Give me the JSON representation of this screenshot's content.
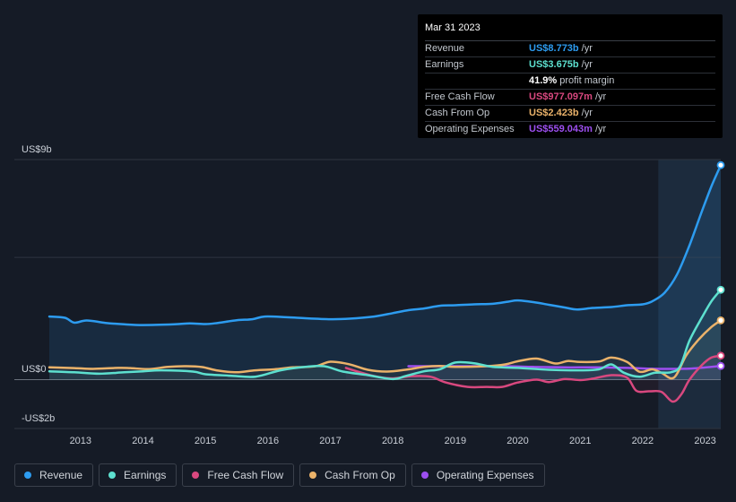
{
  "tooltip": {
    "date": "Mar 31 2023",
    "rows": [
      {
        "label": "Revenue",
        "value": "US$8.773b",
        "unit": "/yr",
        "color": "#2d9cf0"
      },
      {
        "label": "Earnings",
        "value": "US$3.675b",
        "unit": "/yr",
        "color": "#5de0cf"
      },
      {
        "label": "",
        "value": "41.9%",
        "unit": "profit margin",
        "color": "#ffffff"
      },
      {
        "label": "Free Cash Flow",
        "value": "US$977.097m",
        "unit": "/yr",
        "color": "#d9487f"
      },
      {
        "label": "Cash From Op",
        "value": "US$2.423b",
        "unit": "/yr",
        "color": "#eab26a"
      },
      {
        "label": "Operating Expenses",
        "value": "US$559.043m",
        "unit": "/yr",
        "color": "#9d4ff0"
      }
    ]
  },
  "legend": [
    {
      "label": "Revenue",
      "color": "#2d9cf0"
    },
    {
      "label": "Earnings",
      "color": "#5de0cf"
    },
    {
      "label": "Free Cash Flow",
      "color": "#d9487f"
    },
    {
      "label": "Cash From Op",
      "color": "#eab26a"
    },
    {
      "label": "Operating Expenses",
      "color": "#9d4ff0"
    }
  ],
  "chart_data": {
    "type": "line",
    "y_unit": "US$ billions",
    "ylim": [
      -2,
      9
    ],
    "y_tick_labels": [
      "US$9b",
      "US$0",
      "-US$2b"
    ],
    "y_ticks": [
      9,
      0,
      -2
    ],
    "x_tick_labels": [
      "2013",
      "2014",
      "2015",
      "2016",
      "2017",
      "2018",
      "2019",
      "2020",
      "2021",
      "2022",
      "2023"
    ],
    "x_ticks": [
      2013,
      2014,
      2015,
      2016,
      2017,
      2018,
      2019,
      2020,
      2021,
      2022,
      2023
    ],
    "xlim": [
      2012.4,
      2023.25
    ],
    "highlight_range": [
      2022.25,
      2023.25
    ],
    "series": [
      {
        "name": "Revenue",
        "color": "#2d9cf0",
        "filled": true,
        "points": [
          [
            2012.5,
            2.58
          ],
          [
            2012.75,
            2.53
          ],
          [
            2012.9,
            2.33
          ],
          [
            2013.1,
            2.42
          ],
          [
            2013.4,
            2.32
          ],
          [
            2013.7,
            2.26
          ],
          [
            2014.0,
            2.23
          ],
          [
            2014.5,
            2.26
          ],
          [
            2014.75,
            2.3
          ],
          [
            2015.0,
            2.27
          ],
          [
            2015.2,
            2.32
          ],
          [
            2015.5,
            2.43
          ],
          [
            2015.75,
            2.47
          ],
          [
            2015.95,
            2.58
          ],
          [
            2016.3,
            2.55
          ],
          [
            2016.6,
            2.51
          ],
          [
            2017.0,
            2.47
          ],
          [
            2017.3,
            2.49
          ],
          [
            2017.7,
            2.58
          ],
          [
            2018.0,
            2.72
          ],
          [
            2018.25,
            2.84
          ],
          [
            2018.5,
            2.91
          ],
          [
            2018.75,
            3.02
          ],
          [
            2019.0,
            3.04
          ],
          [
            2019.3,
            3.08
          ],
          [
            2019.6,
            3.1
          ],
          [
            2019.85,
            3.19
          ],
          [
            2020.0,
            3.24
          ],
          [
            2020.25,
            3.17
          ],
          [
            2020.5,
            3.06
          ],
          [
            2020.75,
            2.95
          ],
          [
            2020.95,
            2.87
          ],
          [
            2021.2,
            2.93
          ],
          [
            2021.5,
            2.97
          ],
          [
            2021.75,
            3.04
          ],
          [
            2022.0,
            3.08
          ],
          [
            2022.15,
            3.2
          ],
          [
            2022.35,
            3.55
          ],
          [
            2022.55,
            4.3
          ],
          [
            2022.75,
            5.5
          ],
          [
            2022.95,
            6.9
          ],
          [
            2023.1,
            7.9
          ],
          [
            2023.25,
            8.773
          ]
        ]
      },
      {
        "name": "Earnings",
        "color": "#5de0cf",
        "filled": false,
        "points": [
          [
            2012.5,
            0.34
          ],
          [
            2012.9,
            0.3
          ],
          [
            2013.3,
            0.24
          ],
          [
            2013.7,
            0.3
          ],
          [
            2014.0,
            0.34
          ],
          [
            2014.3,
            0.38
          ],
          [
            2014.8,
            0.33
          ],
          [
            2015.0,
            0.22
          ],
          [
            2015.4,
            0.16
          ],
          [
            2015.8,
            0.12
          ],
          [
            2016.2,
            0.38
          ],
          [
            2016.6,
            0.52
          ],
          [
            2016.9,
            0.55
          ],
          [
            2017.2,
            0.33
          ],
          [
            2017.6,
            0.18
          ],
          [
            2018.0,
            0.02
          ],
          [
            2018.2,
            0.14
          ],
          [
            2018.5,
            0.34
          ],
          [
            2018.75,
            0.42
          ],
          [
            2019.0,
            0.7
          ],
          [
            2019.3,
            0.67
          ],
          [
            2019.6,
            0.52
          ],
          [
            2020.0,
            0.48
          ],
          [
            2020.5,
            0.4
          ],
          [
            2021.0,
            0.38
          ],
          [
            2021.3,
            0.42
          ],
          [
            2021.5,
            0.62
          ],
          [
            2021.7,
            0.28
          ],
          [
            2021.95,
            0.12
          ],
          [
            2022.2,
            0.28
          ],
          [
            2022.45,
            0.3
          ],
          [
            2022.6,
            0.55
          ],
          [
            2022.75,
            1.6
          ],
          [
            2022.95,
            2.55
          ],
          [
            2023.1,
            3.2
          ],
          [
            2023.25,
            3.675
          ]
        ]
      },
      {
        "name": "Free Cash Flow",
        "color": "#d9487f",
        "filled": false,
        "points": [
          [
            2017.25,
            0.48
          ],
          [
            2017.5,
            0.28
          ],
          [
            2017.75,
            0.12
          ],
          [
            2018.0,
            0.05
          ],
          [
            2018.3,
            0.14
          ],
          [
            2018.6,
            0.12
          ],
          [
            2018.85,
            -0.12
          ],
          [
            2019.2,
            -0.3
          ],
          [
            2019.5,
            -0.3
          ],
          [
            2019.75,
            -0.3
          ],
          [
            2020.0,
            -0.12
          ],
          [
            2020.3,
            0.0
          ],
          [
            2020.5,
            -0.1
          ],
          [
            2020.75,
            0.02
          ],
          [
            2021.0,
            -0.02
          ],
          [
            2021.2,
            0.04
          ],
          [
            2021.5,
            0.18
          ],
          [
            2021.75,
            0.08
          ],
          [
            2021.9,
            -0.46
          ],
          [
            2022.1,
            -0.48
          ],
          [
            2022.3,
            -0.5
          ],
          [
            2022.48,
            -0.9
          ],
          [
            2022.62,
            -0.6
          ],
          [
            2022.75,
            0.0
          ],
          [
            2022.95,
            0.6
          ],
          [
            2023.1,
            0.9
          ],
          [
            2023.25,
            0.977
          ]
        ]
      },
      {
        "name": "Cash From Op",
        "color": "#eab26a",
        "filled": false,
        "points": [
          [
            2012.5,
            0.5
          ],
          [
            2012.9,
            0.47
          ],
          [
            2013.2,
            0.44
          ],
          [
            2013.6,
            0.48
          ],
          [
            2013.8,
            0.47
          ],
          [
            2014.1,
            0.43
          ],
          [
            2014.4,
            0.52
          ],
          [
            2014.7,
            0.55
          ],
          [
            2014.95,
            0.51
          ],
          [
            2015.2,
            0.37
          ],
          [
            2015.5,
            0.3
          ],
          [
            2015.8,
            0.38
          ],
          [
            2016.1,
            0.42
          ],
          [
            2016.4,
            0.5
          ],
          [
            2016.75,
            0.54
          ],
          [
            2017.0,
            0.73
          ],
          [
            2017.3,
            0.63
          ],
          [
            2017.6,
            0.4
          ],
          [
            2017.9,
            0.33
          ],
          [
            2018.2,
            0.4
          ],
          [
            2018.5,
            0.52
          ],
          [
            2018.75,
            0.56
          ],
          [
            2019.0,
            0.52
          ],
          [
            2019.5,
            0.55
          ],
          [
            2019.8,
            0.62
          ],
          [
            2020.0,
            0.75
          ],
          [
            2020.3,
            0.86
          ],
          [
            2020.6,
            0.66
          ],
          [
            2020.8,
            0.76
          ],
          [
            2021.0,
            0.72
          ],
          [
            2021.3,
            0.74
          ],
          [
            2021.5,
            0.9
          ],
          [
            2021.75,
            0.72
          ],
          [
            2021.95,
            0.32
          ],
          [
            2022.15,
            0.42
          ],
          [
            2022.3,
            0.28
          ],
          [
            2022.5,
            0.08
          ],
          [
            2022.7,
            1.0
          ],
          [
            2022.9,
            1.65
          ],
          [
            2023.1,
            2.15
          ],
          [
            2023.25,
            2.423
          ]
        ]
      },
      {
        "name": "Operating Expenses",
        "color": "#9d4ff0",
        "filled": false,
        "points": [
          [
            2018.25,
            0.55
          ],
          [
            2018.75,
            0.55
          ],
          [
            2019.25,
            0.55
          ],
          [
            2019.75,
            0.55
          ],
          [
            2020.25,
            0.52
          ],
          [
            2020.75,
            0.5
          ],
          [
            2021.25,
            0.5
          ],
          [
            2021.75,
            0.48
          ],
          [
            2022.25,
            0.44
          ],
          [
            2022.75,
            0.45
          ],
          [
            2023.25,
            0.559
          ]
        ]
      }
    ]
  }
}
